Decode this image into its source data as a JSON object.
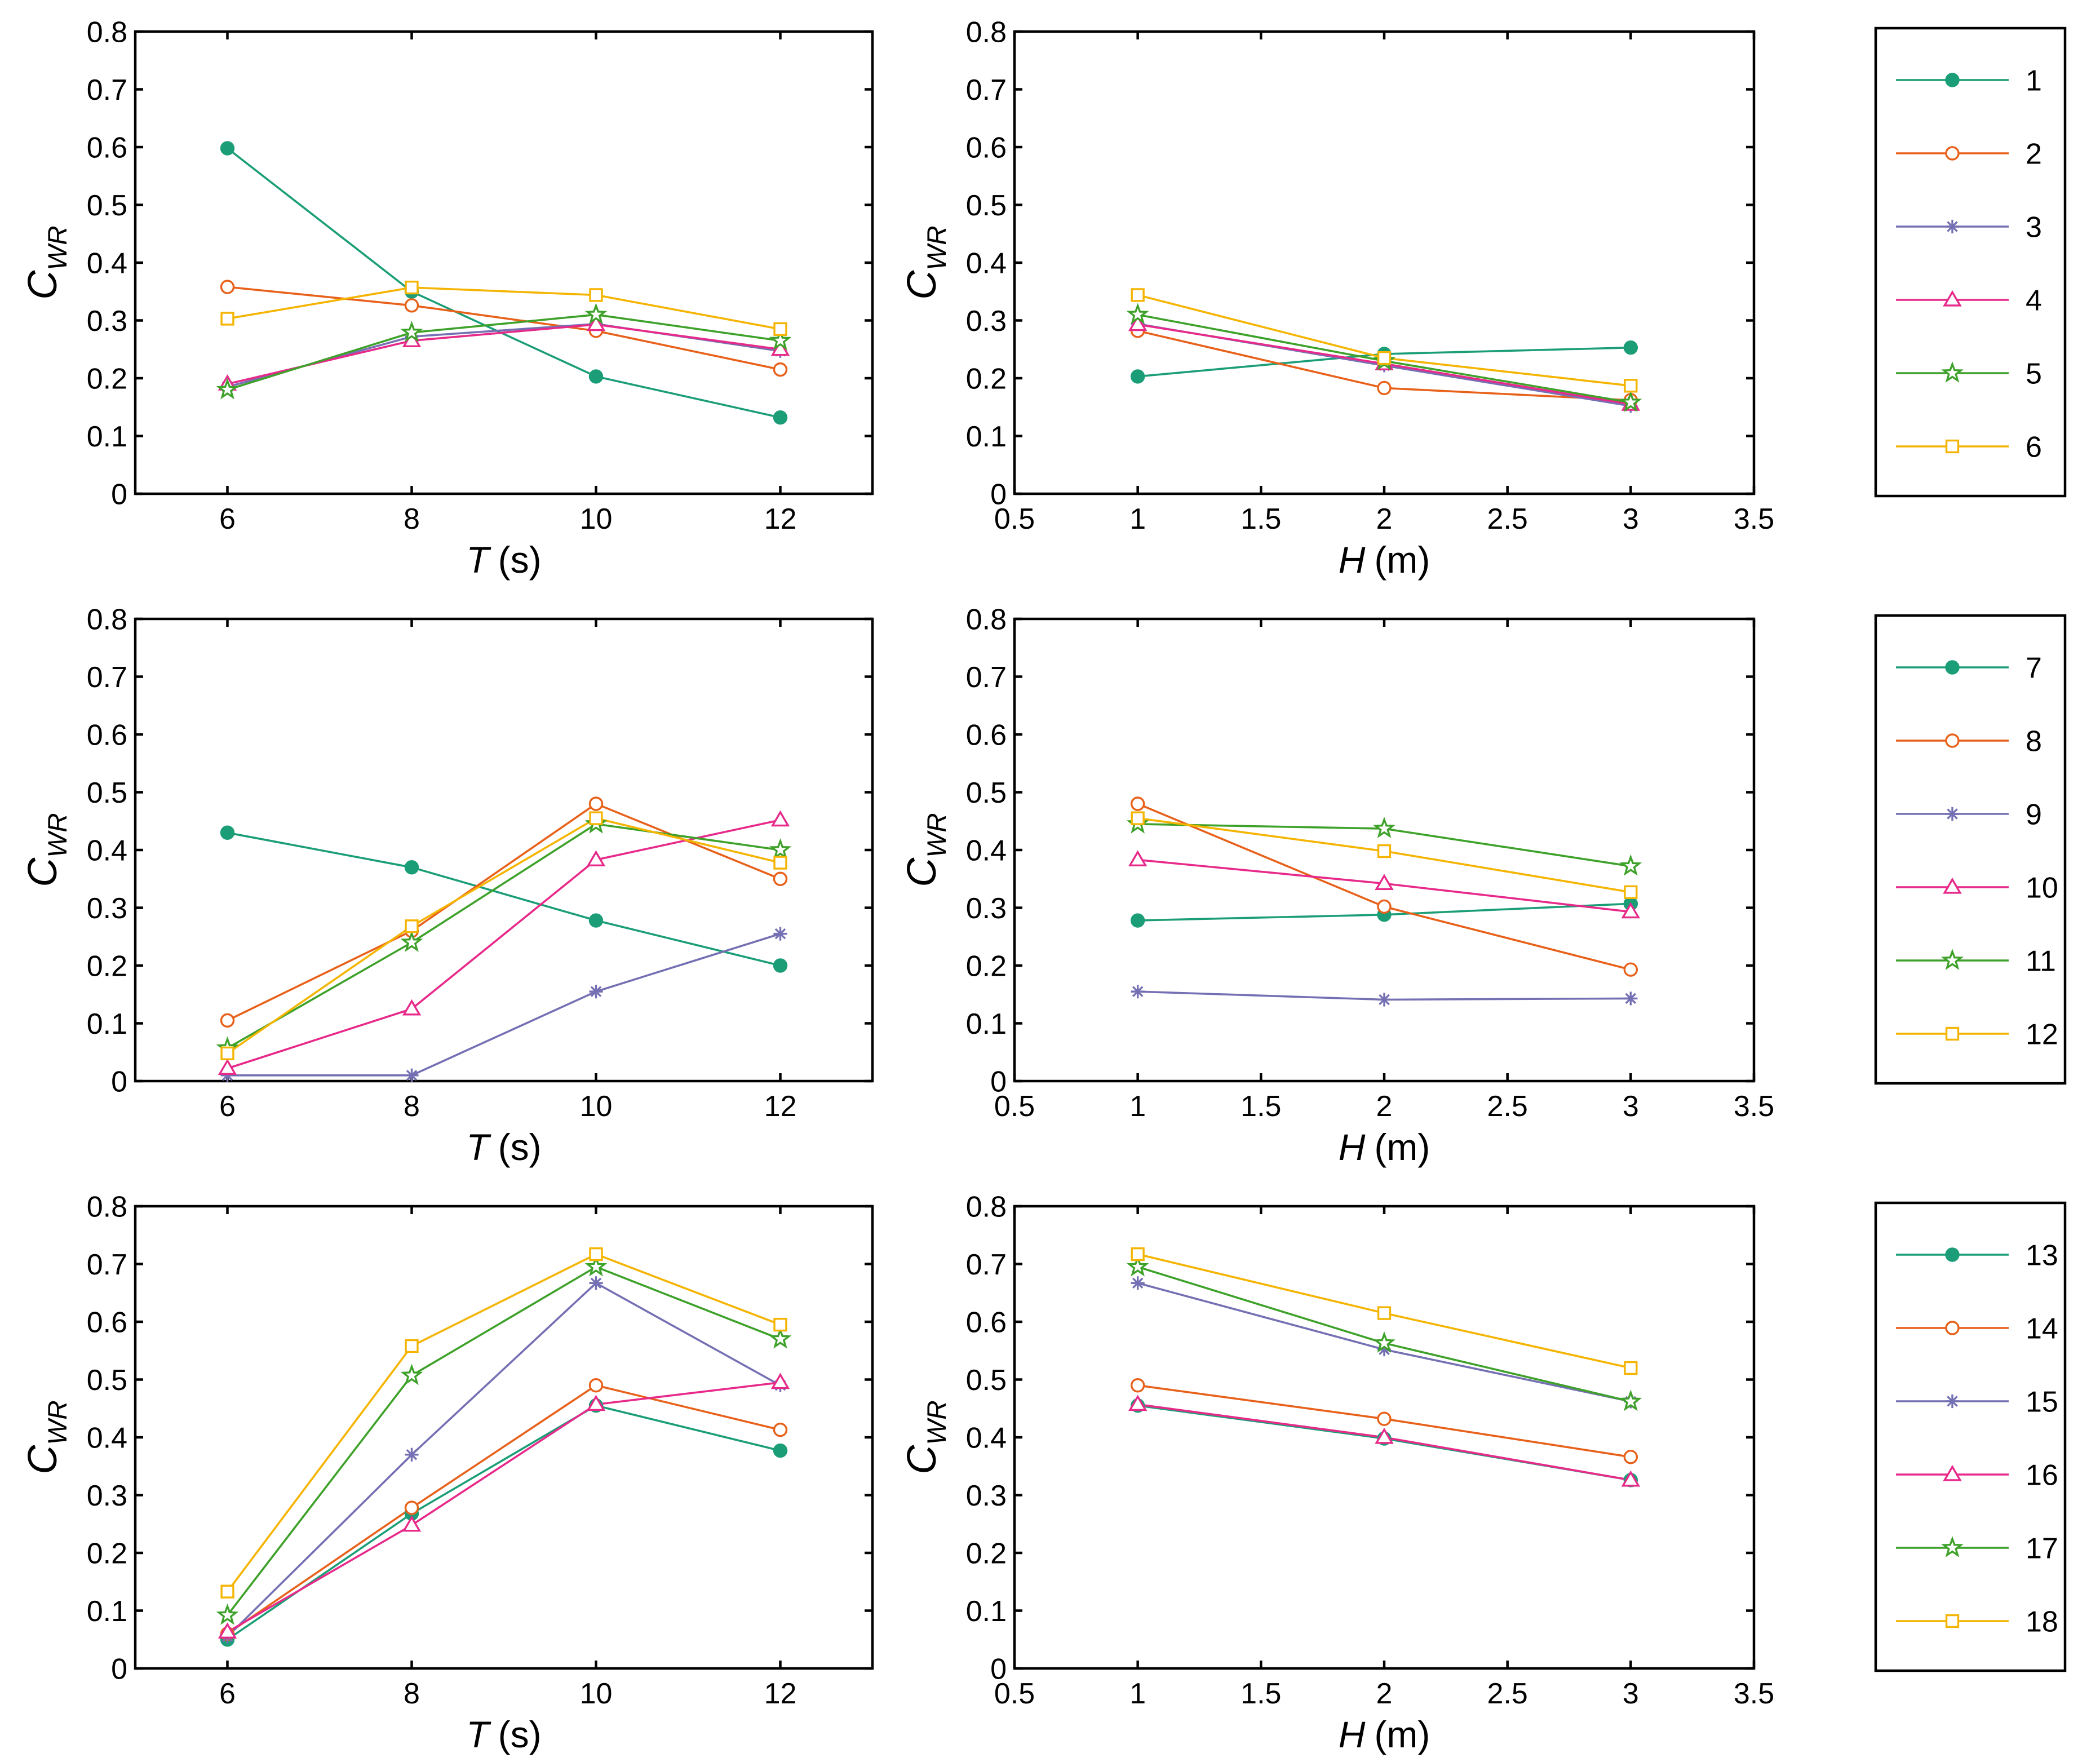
{
  "series_colors": [
    "#1b9e77",
    "#e8611a",
    "#7570b3",
    "#e7298a",
    "#3ea12a",
    "#f4b400"
  ],
  "series_markers": [
    "filled-circle",
    "open-circle",
    "asterisk",
    "open-triangle",
    "open-star",
    "open-square"
  ],
  "chart_data": [
    {
      "type": "line",
      "row": 1,
      "xparam": "T",
      "ylabel_main": "C",
      "ylabel_sub": "WR",
      "xlabel_var": "T",
      "xlabel_unit": "(s)",
      "x": [
        6,
        8,
        10,
        12
      ],
      "xlim": [
        5,
        13
      ],
      "ylim": [
        0,
        0.8
      ],
      "xticks": [
        "6",
        "8",
        "10",
        "12"
      ],
      "yticks": [
        "0",
        "0.1",
        "0.2",
        "0.3",
        "0.4",
        "0.5",
        "0.6",
        "0.7",
        "0.8"
      ],
      "series": [
        {
          "name": "1",
          "values": [
            0.598,
            0.35,
            0.203,
            0.132
          ]
        },
        {
          "name": "2",
          "values": [
            0.358,
            0.326,
            0.282,
            0.215
          ]
        },
        {
          "name": "3",
          "values": [
            0.185,
            0.272,
            0.294,
            0.247
          ]
        },
        {
          "name": "4",
          "values": [
            0.19,
            0.265,
            0.293,
            0.25
          ]
        },
        {
          "name": "5",
          "values": [
            0.18,
            0.279,
            0.31,
            0.265
          ]
        },
        {
          "name": "6",
          "values": [
            0.303,
            0.357,
            0.344,
            0.285
          ]
        }
      ]
    },
    {
      "type": "line",
      "row": 1,
      "xparam": "H",
      "ylabel_main": "C",
      "ylabel_sub": "WR",
      "xlabel_var": "H",
      "xlabel_unit": "(m)",
      "x": [
        1,
        2,
        3
      ],
      "xlim": [
        0.5,
        3.5
      ],
      "ylim": [
        0,
        0.8
      ],
      "xticks": [
        "0.5",
        "1",
        "1.5",
        "2",
        "2.5",
        "3",
        "3.5"
      ],
      "yticks": [
        "0",
        "0.1",
        "0.2",
        "0.3",
        "0.4",
        "0.5",
        "0.6",
        "0.7",
        "0.8"
      ],
      "series": [
        {
          "name": "1",
          "values": [
            0.203,
            0.242,
            0.253
          ]
        },
        {
          "name": "2",
          "values": [
            0.282,
            0.183,
            0.162
          ]
        },
        {
          "name": "3",
          "values": [
            0.294,
            0.222,
            0.152
          ]
        },
        {
          "name": "4",
          "values": [
            0.293,
            0.225,
            0.155
          ]
        },
        {
          "name": "5",
          "values": [
            0.31,
            0.23,
            0.158
          ]
        },
        {
          "name": "6",
          "values": [
            0.344,
            0.235,
            0.187
          ]
        }
      ]
    },
    {
      "type": "line",
      "row": 2,
      "xparam": "T",
      "ylabel_main": "C",
      "ylabel_sub": "WR",
      "xlabel_var": "T",
      "xlabel_unit": "(s)",
      "x": [
        6,
        8,
        10,
        12
      ],
      "xlim": [
        5,
        13
      ],
      "ylim": [
        0,
        0.8
      ],
      "xticks": [
        "6",
        "8",
        "10",
        "12"
      ],
      "yticks": [
        "0",
        "0.1",
        "0.2",
        "0.3",
        "0.4",
        "0.5",
        "0.6",
        "0.7",
        "0.8"
      ],
      "series": [
        {
          "name": "7",
          "values": [
            0.43,
            0.37,
            0.278,
            0.2
          ]
        },
        {
          "name": "8",
          "values": [
            0.105,
            0.26,
            0.48,
            0.35
          ]
        },
        {
          "name": "9",
          "values": [
            0.01,
            0.01,
            0.155,
            0.255
          ]
        },
        {
          "name": "10",
          "values": [
            0.022,
            0.125,
            0.383,
            0.452
          ]
        },
        {
          "name": "11",
          "values": [
            0.057,
            0.24,
            0.445,
            0.4
          ]
        },
        {
          "name": "12",
          "values": [
            0.048,
            0.268,
            0.455,
            0.378
          ]
        }
      ]
    },
    {
      "type": "line",
      "row": 2,
      "xparam": "H",
      "ylabel_main": "C",
      "ylabel_sub": "WR",
      "xlabel_var": "H",
      "xlabel_unit": "(m)",
      "x": [
        1,
        2,
        3
      ],
      "xlim": [
        0.5,
        3.5
      ],
      "ylim": [
        0,
        0.8
      ],
      "xticks": [
        "0.5",
        "1",
        "1.5",
        "2",
        "2.5",
        "3",
        "3.5"
      ],
      "yticks": [
        "0",
        "0.1",
        "0.2",
        "0.3",
        "0.4",
        "0.5",
        "0.6",
        "0.7",
        "0.8"
      ],
      "series": [
        {
          "name": "7",
          "values": [
            0.278,
            0.288,
            0.307
          ]
        },
        {
          "name": "8",
          "values": [
            0.48,
            0.302,
            0.193
          ]
        },
        {
          "name": "9",
          "values": [
            0.155,
            0.141,
            0.143
          ]
        },
        {
          "name": "10",
          "values": [
            0.383,
            0.342,
            0.293
          ]
        },
        {
          "name": "11",
          "values": [
            0.445,
            0.437,
            0.372
          ]
        },
        {
          "name": "12",
          "values": [
            0.455,
            0.398,
            0.327
          ]
        }
      ]
    },
    {
      "type": "line",
      "row": 3,
      "xparam": "T",
      "ylabel_main": "C",
      "ylabel_sub": "WR",
      "xlabel_var": "T",
      "xlabel_unit": "(s)",
      "x": [
        6,
        8,
        10,
        12
      ],
      "xlim": [
        5,
        13
      ],
      "ylim": [
        0,
        0.8
      ],
      "xticks": [
        "6",
        "8",
        "10",
        "12"
      ],
      "yticks": [
        "0",
        "0.1",
        "0.2",
        "0.3",
        "0.4",
        "0.5",
        "0.6",
        "0.7",
        "0.8"
      ],
      "series": [
        {
          "name": "13",
          "values": [
            0.05,
            0.268,
            0.455,
            0.377
          ]
        },
        {
          "name": "14",
          "values": [
            0.06,
            0.278,
            0.49,
            0.413
          ]
        },
        {
          "name": "15",
          "values": [
            0.055,
            0.37,
            0.667,
            0.49
          ]
        },
        {
          "name": "16",
          "values": [
            0.063,
            0.248,
            0.457,
            0.495
          ]
        },
        {
          "name": "17",
          "values": [
            0.092,
            0.507,
            0.695,
            0.57
          ]
        },
        {
          "name": "18",
          "values": [
            0.133,
            0.558,
            0.717,
            0.595
          ]
        }
      ]
    },
    {
      "type": "line",
      "row": 3,
      "xparam": "H",
      "ylabel_main": "C",
      "ylabel_sub": "WR",
      "xlabel_var": "H",
      "xlabel_unit": "(m)",
      "x": [
        1,
        2,
        3
      ],
      "xlim": [
        0.5,
        3.5
      ],
      "ylim": [
        0,
        0.8
      ],
      "xticks": [
        "0.5",
        "1",
        "1.5",
        "2",
        "2.5",
        "3",
        "3.5"
      ],
      "yticks": [
        "0",
        "0.1",
        "0.2",
        "0.3",
        "0.4",
        "0.5",
        "0.6",
        "0.7",
        "0.8"
      ],
      "series": [
        {
          "name": "13",
          "values": [
            0.455,
            0.398,
            0.326
          ]
        },
        {
          "name": "14",
          "values": [
            0.49,
            0.432,
            0.366
          ]
        },
        {
          "name": "15",
          "values": [
            0.667,
            0.552,
            0.462
          ]
        },
        {
          "name": "16",
          "values": [
            0.457,
            0.4,
            0.326
          ]
        },
        {
          "name": "17",
          "values": [
            0.695,
            0.563,
            0.462
          ]
        },
        {
          "name": "18",
          "values": [
            0.717,
            0.615,
            0.52
          ]
        }
      ]
    }
  ],
  "legends": [
    {
      "row": 1,
      "items": [
        "1",
        "2",
        "3",
        "4",
        "5",
        "6"
      ]
    },
    {
      "row": 2,
      "items": [
        "7",
        "8",
        "9",
        "10",
        "11",
        "12"
      ]
    },
    {
      "row": 3,
      "items": [
        "13",
        "14",
        "15",
        "16",
        "17",
        "18"
      ]
    }
  ]
}
